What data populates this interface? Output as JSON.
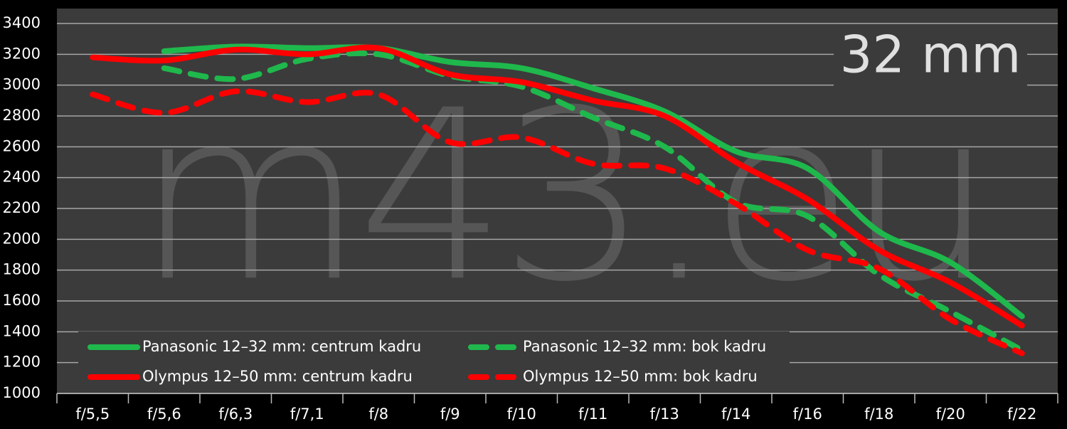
{
  "chart_data": {
    "type": "line",
    "annotation": "32 mm",
    "watermark": "m43.eu",
    "categories": [
      "f/5,5",
      "f/5,6",
      "f/6,3",
      "f/7,1",
      "f/8",
      "f/9",
      "f/10",
      "f/11",
      "f/13",
      "f/14",
      "f/16",
      "f/18",
      "f/20",
      "f/22"
    ],
    "series": [
      {
        "name": "Panasonic 12–32 mm: centrum kadru",
        "color": "#1fb84c",
        "dash": false,
        "values": [
          null,
          3220,
          3250,
          3240,
          3240,
          3150,
          3110,
          2980,
          2830,
          2570,
          2460,
          2050,
          1850,
          1500
        ]
      },
      {
        "name": "Panasonic 12–32 mm: bok kadru",
        "color": "#1fb84c",
        "dash": true,
        "values": [
          null,
          3110,
          3040,
          3170,
          3200,
          3060,
          2990,
          2790,
          2600,
          2240,
          2150,
          1770,
          1530,
          1280
        ]
      },
      {
        "name": "Olympus 12–50 mm: centrum kadru",
        "color": "#ff0000",
        "dash": false,
        "values": [
          3180,
          3160,
          3230,
          3200,
          3240,
          3070,
          3020,
          2900,
          2800,
          2500,
          2260,
          1930,
          1720,
          1440
        ]
      },
      {
        "name": "Olympus 12–50 mm: bok kadru",
        "color": "#ff0000",
        "dash": true,
        "values": [
          2940,
          2820,
          2960,
          2890,
          2940,
          2630,
          2660,
          2490,
          2460,
          2230,
          1930,
          1810,
          1480,
          1260
        ]
      }
    ],
    "ylim": [
      1000,
      3400
    ],
    "yticks": [
      1000,
      1200,
      1400,
      1600,
      1800,
      2000,
      2200,
      2400,
      2600,
      2800,
      3000,
      3200,
      3400
    ],
    "grid": true,
    "legend": "bottom"
  }
}
